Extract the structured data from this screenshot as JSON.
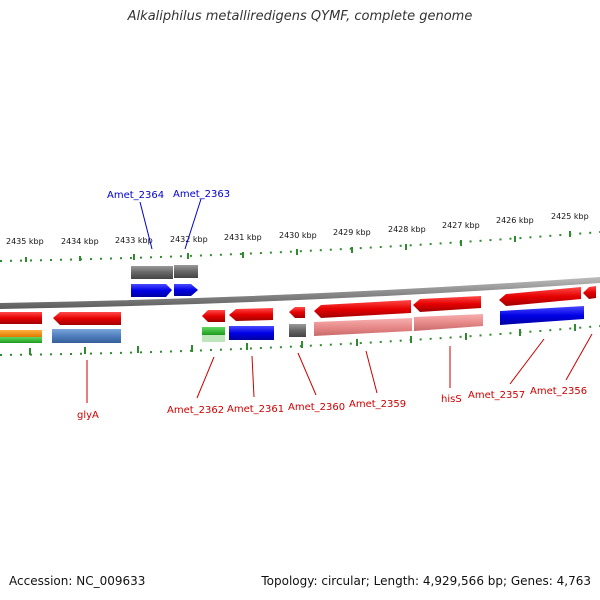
{
  "title": "Alkaliphilus metalliredigens QYMF, complete genome",
  "footer": {
    "accession": "Accession: NC_009633",
    "topology": "Topology: circular; Length: 4,929,566 bp; Genes: 4,763"
  },
  "colors": {
    "cds_forward": "#0000e6",
    "cds_reverse": "#e60000",
    "pseudo_gray": "#666666",
    "label_blue": "#0000cc",
    "label_red": "#cc0000",
    "tick_green": "#2e8b2e",
    "backbone": "#888888"
  },
  "scale_labels": [
    "2435 kbp",
    "2434 kbp",
    "2433 kbp",
    "2432 kbp",
    "2431 kbp",
    "2430 kbp",
    "2429 kbp",
    "2428 kbp",
    "2427 kbp",
    "2426 kbp",
    "2425 kbp"
  ],
  "top_gene_labels": [
    "Amet_2364",
    "Amet_2363"
  ],
  "bottom_gene_labels": [
    "glyA",
    "Amet_2362",
    "Amet_2361",
    "Amet_2360",
    "Amet_2359",
    "hisS",
    "Amet_2357",
    "Amet_2356"
  ]
}
